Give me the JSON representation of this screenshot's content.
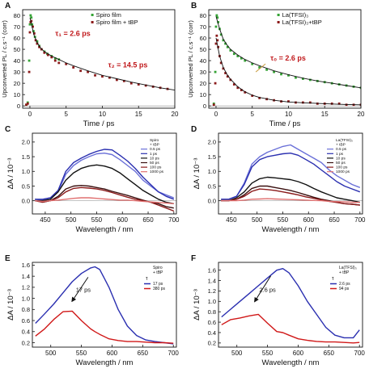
{
  "chart_data": [
    {
      "panel": "A",
      "type": "scatter",
      "xlabel": "Time / ps",
      "ylabel": "Upconverted PL / c.s⁻¹ (corr)",
      "xlim": [
        -1,
        20
      ],
      "ylim": [
        -2,
        85
      ],
      "xticks": [
        0,
        5,
        10,
        15,
        20
      ],
      "yticks": [
        0,
        10,
        20,
        30,
        40,
        50,
        60,
        70,
        80
      ],
      "legend_position": "top-right",
      "annotations": [
        {
          "text": "τ₁ = 2.6 ps",
          "x": 3.5,
          "y": 62,
          "color": "#c0181b"
        },
        {
          "text": "τ₂ = 14.5 ps",
          "x": 10.8,
          "y": 34,
          "color": "#c0181b"
        }
      ],
      "series": [
        {
          "name": "Spiro film",
          "color": "#35a335",
          "kind": "scatter",
          "x": [
            -0.5,
            -0.3,
            -0.1,
            0,
            0.1,
            0.2,
            0.3,
            0.5,
            0.7,
            1,
            1.3,
            1.6,
            2,
            2.4,
            3,
            3.5,
            4
          ],
          "y": [
            1,
            3,
            40,
            72,
            80,
            78,
            72,
            66,
            61,
            57,
            53,
            50,
            48,
            46,
            44,
            42,
            41
          ]
        },
        {
          "name": "Spiro film + tBP",
          "color": "#8b1a1a",
          "kind": "scatter",
          "x": [
            -0.5,
            -0.3,
            -0.1,
            0,
            0.1,
            0.2,
            0.4,
            0.6,
            0.8,
            1,
            1.3,
            1.6,
            2,
            2.5,
            3,
            3.5,
            4,
            5,
            6,
            7,
            8,
            9,
            10,
            11,
            12,
            13,
            14,
            15,
            16,
            17,
            18,
            19
          ],
          "y": [
            1,
            2,
            30,
            65,
            74,
            75,
            70,
            64,
            58,
            55,
            52,
            50,
            47,
            45,
            43,
            40,
            38,
            37,
            34,
            31,
            30,
            27,
            26,
            25,
            23,
            22,
            20,
            19,
            18,
            17,
            16,
            15
          ]
        },
        {
          "name": "fit",
          "color": "#111111",
          "kind": "line",
          "x": [
            0,
            0.3,
            0.6,
            1,
            1.5,
            2,
            3,
            4,
            5,
            6,
            8,
            10,
            12,
            14,
            16,
            18,
            20
          ],
          "y": [
            78,
            70,
            62,
            56,
            51,
            48,
            44,
            41,
            38,
            35.5,
            31,
            27,
            24,
            21,
            18.5,
            16,
            14
          ]
        }
      ]
    },
    {
      "panel": "B",
      "type": "scatter",
      "xlabel": "Time / ps",
      "ylabel": "Upconverted PL / c.s⁻¹ (corr)",
      "xlim": [
        -1,
        20
      ],
      "ylim": [
        -2,
        85
      ],
      "xticks": [
        0,
        5,
        10,
        15,
        20
      ],
      "yticks": [
        0,
        10,
        20,
        30,
        40,
        50,
        60,
        70,
        80
      ],
      "legend_position": "top-right",
      "annotations": [
        {
          "text": "τ₀ = 2.6 ps",
          "x": 7.5,
          "y": 40,
          "color": "#c0181b"
        }
      ],
      "series": [
        {
          "name": "La(TFSI)₃",
          "color": "#35a335",
          "kind": "scatter",
          "x": [
            -0.3,
            -0.1,
            0,
            0.1,
            0.2,
            0.3,
            0.5,
            0.7,
            1,
            1.3,
            1.6,
            2,
            2.5,
            3,
            3.5,
            4,
            5,
            6,
            7,
            8,
            9,
            10,
            11,
            12,
            13,
            14,
            15,
            16,
            17,
            18,
            19,
            20
          ],
          "y": [
            2,
            30,
            70,
            80,
            78,
            74,
            68,
            63,
            58,
            55,
            52,
            49,
            46,
            44,
            42,
            40,
            37,
            34,
            32,
            30,
            28,
            27,
            25,
            24,
            23,
            22,
            21,
            20,
            19,
            18,
            17,
            16
          ]
        },
        {
          "name": "La(TFSI)₃+tBP",
          "color": "#8b1a1a",
          "kind": "scatter",
          "x": [
            -0.3,
            -0.1,
            0,
            0.1,
            0.2,
            0.3,
            0.5,
            0.7,
            1,
            1.3,
            1.6,
            2,
            2.5,
            3,
            3.5,
            4,
            5,
            6,
            7,
            8,
            9,
            10,
            11,
            12,
            13,
            14,
            15,
            16,
            17,
            18,
            19,
            20
          ],
          "y": [
            1,
            20,
            55,
            62,
            58,
            52,
            44,
            38,
            33,
            29,
            26,
            23,
            19,
            16,
            14,
            12,
            9,
            7,
            6,
            5,
            4,
            4,
            3,
            3,
            3,
            2,
            2,
            2,
            2,
            1,
            1,
            1
          ]
        },
        {
          "name": "fit-1",
          "color": "#111111",
          "kind": "line",
          "x": [
            0,
            0.5,
            1,
            1.5,
            2,
            3,
            4,
            5,
            6,
            8,
            10,
            12,
            14,
            16,
            18,
            20
          ],
          "y": [
            79,
            68,
            59,
            54,
            50,
            45,
            41,
            38,
            35.5,
            31,
            27.5,
            24.5,
            22,
            20,
            18,
            16
          ]
        },
        {
          "name": "fit-2",
          "color": "#111111",
          "kind": "line",
          "x": [
            0,
            0.5,
            1,
            1.5,
            2,
            3,
            4,
            5,
            6,
            8,
            10,
            12,
            14,
            16,
            18,
            20
          ],
          "y": [
            60,
            44,
            34,
            28,
            23.5,
            17,
            12.5,
            9.5,
            7.5,
            5,
            3.5,
            2.8,
            2.2,
            1.7,
            1.3,
            1
          ]
        }
      ]
    },
    {
      "panel": "C",
      "type": "line",
      "xlabel": "Wavelength / nm",
      "ylabel": "ΔA / 10⁻³",
      "xlim": [
        425,
        705
      ],
      "ylim": [
        -0.45,
        2.3
      ],
      "xticks": [
        450,
        500,
        550,
        600,
        650,
        700
      ],
      "yticks": [
        -0.5,
        0.0,
        0.5,
        1.0,
        1.5,
        2.0
      ],
      "ytick_labels": [
        "-0.5",
        "0.0",
        "0.5",
        "1.0",
        "1.5",
        "2.0"
      ],
      "legend_position": "top-right",
      "legend_title": "Spiro\n+ tBP",
      "x": [
        430,
        445,
        460,
        475,
        490,
        505,
        520,
        535,
        550,
        565,
        580,
        595,
        610,
        625,
        640,
        655,
        670,
        685,
        700
      ],
      "series": [
        {
          "name": "0.5 ps",
          "color": "#6a70d8",
          "values": [
            0.05,
            0.02,
            0.05,
            0.3,
            0.9,
            1.2,
            1.38,
            1.5,
            1.6,
            1.62,
            1.57,
            1.4,
            1.2,
            1.0,
            0.7,
            0.5,
            0.3,
            0.2,
            0.1
          ]
        },
        {
          "name": "1 ps",
          "color": "#2a2fb0",
          "values": [
            0.05,
            0.05,
            0.1,
            0.35,
            1.0,
            1.3,
            1.45,
            1.58,
            1.68,
            1.75,
            1.73,
            1.55,
            1.35,
            1.1,
            0.8,
            0.55,
            0.3,
            0.15,
            0.05
          ]
        },
        {
          "name": "10 ps",
          "color": "#111111",
          "values": [
            0.0,
            0.0,
            0.05,
            0.3,
            0.7,
            0.95,
            1.1,
            1.18,
            1.22,
            1.18,
            1.1,
            0.95,
            0.75,
            0.55,
            0.35,
            0.2,
            0.05,
            -0.05,
            -0.1
          ]
        },
        {
          "name": "50 ps",
          "color": "#3a1010",
          "values": [
            0.0,
            -0.05,
            0.0,
            0.15,
            0.4,
            0.5,
            0.52,
            0.5,
            0.45,
            0.4,
            0.32,
            0.25,
            0.18,
            0.1,
            0.02,
            -0.05,
            -0.1,
            -0.2,
            -0.25
          ]
        },
        {
          "name": "100 ps",
          "color": "#8b1a1a",
          "values": [
            0.0,
            -0.05,
            0.0,
            0.1,
            0.3,
            0.42,
            0.45,
            0.43,
            0.4,
            0.35,
            0.28,
            0.2,
            0.12,
            0.05,
            0.0,
            -0.05,
            -0.15,
            -0.25,
            -0.35
          ]
        },
        {
          "name": "1000 ps",
          "color": "#e07070",
          "values": [
            0.0,
            -0.02,
            0.0,
            0.02,
            0.05,
            0.08,
            0.1,
            0.1,
            0.08,
            0.06,
            0.04,
            0.02,
            0.02,
            0.0,
            -0.02,
            -0.04,
            -0.06,
            -0.08,
            -0.1
          ]
        }
      ]
    },
    {
      "panel": "D",
      "type": "line",
      "xlabel": "Wavelength / nm",
      "ylabel": "ΔA / 10⁻³",
      "xlim": [
        425,
        705
      ],
      "ylim": [
        -0.45,
        2.3
      ],
      "xticks": [
        450,
        500,
        550,
        600,
        650,
        700
      ],
      "yticks": [
        -0.5,
        0.0,
        0.5,
        1.0,
        1.5,
        2.0
      ],
      "ytick_labels": [
        "-0.5",
        "0.0",
        "0.5",
        "1.0",
        "1.5",
        "2.0"
      ],
      "legend_position": "top-right",
      "legend_title": "La(TFSI)₃\n+ tBP",
      "x": [
        430,
        445,
        460,
        475,
        490,
        505,
        520,
        535,
        550,
        565,
        580,
        595,
        610,
        625,
        640,
        655,
        670,
        685,
        700
      ],
      "series": [
        {
          "name": "0.5 ps",
          "color": "#6a70d8",
          "values": [
            0.05,
            0.05,
            0.15,
            0.6,
            1.25,
            1.5,
            1.65,
            1.75,
            1.85,
            1.9,
            1.75,
            1.6,
            1.45,
            1.3,
            1.05,
            0.85,
            0.7,
            0.55,
            0.45
          ]
        },
        {
          "name": "1 ps",
          "color": "#2a2fb0",
          "values": [
            0.05,
            0.05,
            0.15,
            0.55,
            1.15,
            1.4,
            1.5,
            1.55,
            1.6,
            1.62,
            1.55,
            1.4,
            1.25,
            1.05,
            0.85,
            0.65,
            0.5,
            0.4,
            0.3
          ]
        },
        {
          "name": "10 ps",
          "color": "#111111",
          "values": [
            0.0,
            0.0,
            0.1,
            0.3,
            0.6,
            0.75,
            0.8,
            0.78,
            0.75,
            0.72,
            0.65,
            0.55,
            0.42,
            0.3,
            0.2,
            0.1,
            0.05,
            0.0,
            -0.05
          ]
        },
        {
          "name": "50 ps",
          "color": "#3a1010",
          "values": [
            0.0,
            0.0,
            0.05,
            0.2,
            0.42,
            0.5,
            0.5,
            0.45,
            0.4,
            0.35,
            0.28,
            0.2,
            0.12,
            0.05,
            0.0,
            -0.05,
            -0.1,
            -0.12,
            -0.15
          ]
        },
        {
          "name": "100 ps",
          "color": "#8b1a1a",
          "values": [
            0.0,
            0.0,
            0.05,
            0.15,
            0.32,
            0.4,
            0.38,
            0.35,
            0.3,
            0.25,
            0.2,
            0.13,
            0.08,
            0.03,
            -0.02,
            -0.06,
            -0.1,
            -0.12,
            -0.15
          ]
        },
        {
          "name": "1000 ps",
          "color": "#e07070",
          "values": [
            0.0,
            0.0,
            0.0,
            0.02,
            0.05,
            0.06,
            0.07,
            0.06,
            0.05,
            0.04,
            0.03,
            0.02,
            0.01,
            0.0,
            -0.02,
            -0.03,
            -0.04,
            -0.05,
            -0.06
          ]
        }
      ]
    },
    {
      "panel": "E",
      "type": "line",
      "xlabel": "Wavelength / nm",
      "ylabel": "ΔA / 10⁻³",
      "xlim": [
        470,
        705
      ],
      "ylim": [
        0.12,
        1.65
      ],
      "xticks": [
        500,
        550,
        600,
        650,
        700
      ],
      "yticks": [
        0.2,
        0.4,
        0.6,
        0.8,
        1.0,
        1.2,
        1.4,
        1.6
      ],
      "ytick_labels": [
        "0.2",
        "0.4",
        "0.6",
        "0.8",
        "1.0",
        "1.2",
        "1.4",
        "1.6"
      ],
      "legend_position": "top-right",
      "legend_title": "Spiro\n+ tBP",
      "legend_subtitle": "τ",
      "annotations": [
        {
          "text": "17 ps",
          "x": 553,
          "y": 1.12
        }
      ],
      "x": [
        475,
        490,
        505,
        520,
        535,
        550,
        565,
        572,
        580,
        595,
        610,
        625,
        640,
        655,
        670,
        685,
        700
      ],
      "series": [
        {
          "name": "17 ps",
          "color": "#2a2fb0",
          "values": [
            0.55,
            0.72,
            0.9,
            1.1,
            1.3,
            1.45,
            1.55,
            1.57,
            1.52,
            1.2,
            0.8,
            0.5,
            0.33,
            0.25,
            0.22,
            0.2,
            0.18
          ]
        },
        {
          "name": "380 ps",
          "color": "#d01818",
          "values": [
            0.32,
            0.45,
            0.62,
            0.76,
            0.77,
            0.6,
            0.45,
            0.4,
            0.35,
            0.27,
            0.24,
            0.22,
            0.22,
            0.21,
            0.2,
            0.2,
            0.19
          ]
        }
      ]
    },
    {
      "panel": "F",
      "type": "line",
      "xlabel": "Wavelength / nm",
      "ylabel": "ΔA / 10⁻³",
      "xlim": [
        470,
        705
      ],
      "ylim": [
        0.12,
        1.75
      ],
      "xticks": [
        500,
        550,
        600,
        650,
        700
      ],
      "yticks": [
        0.2,
        0.4,
        0.6,
        0.8,
        1.0,
        1.2,
        1.4,
        1.6
      ],
      "ytick_labels": [
        "0.2",
        "0.4",
        "0.6",
        "0.8",
        "1.0",
        "1.2",
        "1.4",
        "1.6"
      ],
      "legend_position": "top-right",
      "legend_title": "La(TFSI)₃\n+ tBP",
      "legend_subtitle": "τ",
      "annotations": [
        {
          "text": "2.6 ps",
          "x": 550,
          "y": 1.18
        }
      ],
      "x": [
        475,
        490,
        505,
        520,
        535,
        550,
        565,
        575,
        585,
        600,
        615,
        630,
        645,
        660,
        675,
        690,
        700
      ],
      "series": [
        {
          "name": "2.6 ps",
          "color": "#2a2fb0",
          "values": [
            0.7,
            0.85,
            1.0,
            1.15,
            1.3,
            1.45,
            1.6,
            1.63,
            1.55,
            1.3,
            1.0,
            0.75,
            0.5,
            0.35,
            0.3,
            0.3,
            0.45
          ]
        },
        {
          "name": "94 ps",
          "color": "#d01818",
          "values": [
            0.55,
            0.65,
            0.68,
            0.72,
            0.75,
            0.58,
            0.42,
            0.4,
            0.35,
            0.28,
            0.25,
            0.23,
            0.22,
            0.22,
            0.21,
            0.2,
            0.21
          ]
        }
      ]
    }
  ]
}
